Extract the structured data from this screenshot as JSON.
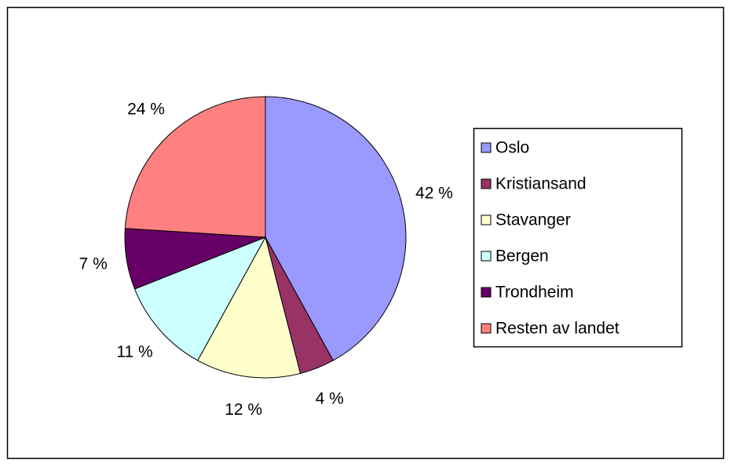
{
  "chart_data": {
    "type": "pie",
    "categories": [
      "Oslo",
      "Kristiansand",
      "Stavanger",
      "Bergen",
      "Trondheim",
      "Resten av landet"
    ],
    "values": [
      42,
      4,
      12,
      11,
      7,
      24
    ],
    "value_labels": [
      "42 %",
      "4 %",
      "12 %",
      "11 %",
      "7 %",
      "24 %"
    ],
    "colors": [
      "#9999ff",
      "#993366",
      "#ffffcc",
      "#ccffff",
      "#660066",
      "#ff8080"
    ],
    "legend": "right"
  }
}
